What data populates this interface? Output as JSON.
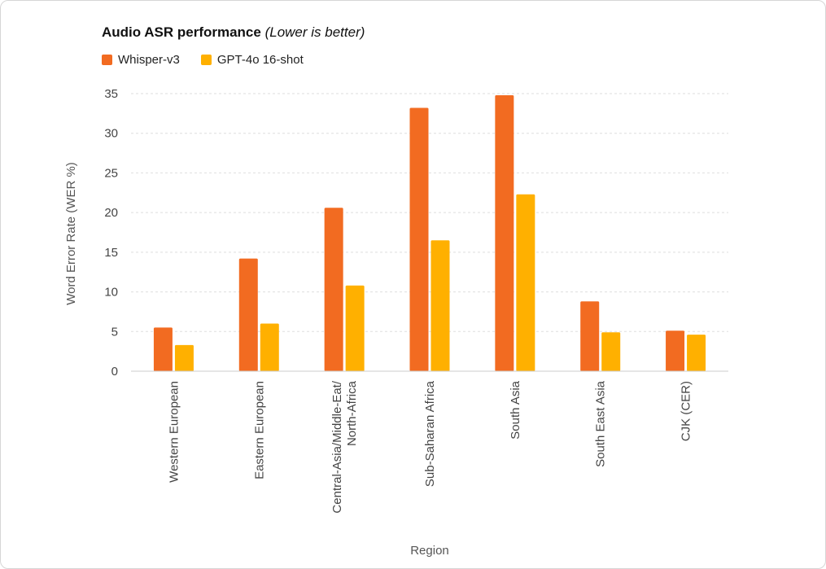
{
  "chart_data": {
    "type": "bar",
    "title": "Audio ASR performance",
    "subtitle": "(Lower is better)",
    "xlabel": "Region",
    "ylabel": "Word Error Rate (WER %)",
    "ylim": [
      0,
      35
    ],
    "yticks": [
      0,
      5,
      10,
      15,
      20,
      25,
      30,
      35
    ],
    "grid": true,
    "legend_position": "top-left",
    "categories": [
      [
        "Western European"
      ],
      [
        "Eastern European"
      ],
      [
        "Central-Asia/Middle-Eat/",
        "North-Africa"
      ],
      [
        "Sub-Saharan Africa"
      ],
      [
        "South Asia"
      ],
      [
        "South East Asia"
      ],
      [
        "CJK (CER)"
      ]
    ],
    "series": [
      {
        "name": "Whisper-v3",
        "color": "#F26B21",
        "values": [
          5.5,
          14.2,
          20.6,
          33.2,
          34.8,
          8.8,
          5.1
        ]
      },
      {
        "name": "GPT-4o 16-shot",
        "color": "#FFB000",
        "values": [
          3.3,
          6.0,
          10.8,
          16.5,
          22.3,
          4.9,
          4.6
        ]
      }
    ]
  }
}
